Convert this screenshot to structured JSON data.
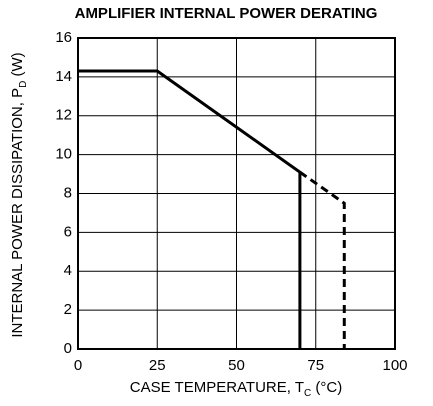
{
  "chart_data": {
    "type": "line",
    "title": "AMPLIFIER INTERNAL POWER DERATING",
    "x_label": [
      "CASE TEMPERATURE, T",
      "C",
      " (°C)"
    ],
    "y_label": [
      "INTERNAL POWER DISSIPATION, P",
      "D",
      " (W)"
    ],
    "series": [
      {
        "color": "#000000",
        "style": "solid",
        "x": [
          0,
          25,
          70,
          70
        ],
        "values": [
          14.3,
          14.3,
          9.1,
          0
        ]
      },
      {
        "color": "#000000",
        "style": "dashed",
        "x": [
          70,
          84,
          84
        ],
        "values": [
          9.1,
          7.5,
          0
        ]
      }
    ],
    "xlim": [
      0,
      100
    ],
    "xticks": [
      0,
      25,
      50,
      75,
      100
    ],
    "ylim": [
      0,
      16
    ],
    "yticks": [
      0,
      2,
      4,
      6,
      8,
      10,
      12,
      14,
      16
    ],
    "grid": true
  }
}
